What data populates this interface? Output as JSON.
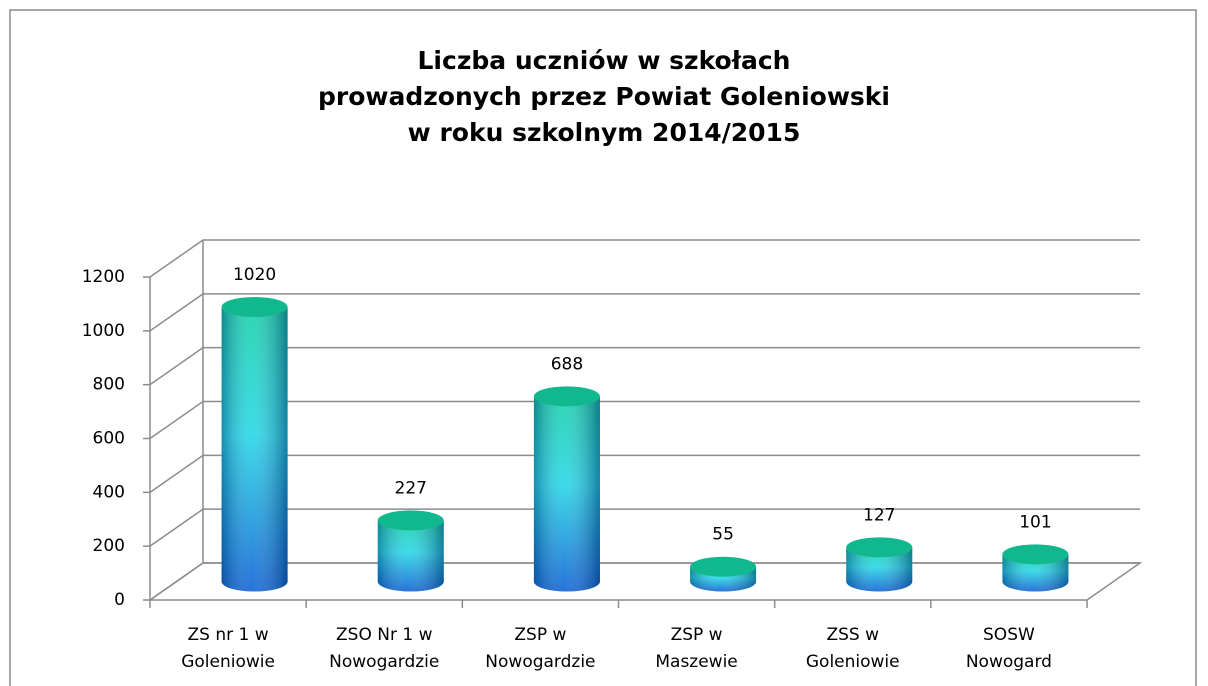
{
  "chart_data": {
    "type": "bar3d",
    "title": [
      "Liczba uczniów w szkołach",
      "prowadzonych przez Powiat Goleniowski",
      "w roku szkolnym 2014/2015"
    ],
    "categories": [
      [
        "ZS nr 1 w",
        "Goleniowie"
      ],
      [
        "ZSO Nr 1 w",
        "Nowogardzie"
      ],
      [
        "ZSP w",
        "Nowogardzie"
      ],
      [
        "ZSP w",
        "Maszewie"
      ],
      [
        "ZSS w",
        "Goleniowie"
      ],
      [
        "SOSW",
        "Nowogard"
      ]
    ],
    "values": [
      1020,
      227,
      688,
      55,
      127,
      101
    ],
    "ylim": [
      0,
      1200
    ],
    "yticks": [
      0,
      200,
      400,
      600,
      800,
      1000,
      1200
    ],
    "grid": true
  }
}
